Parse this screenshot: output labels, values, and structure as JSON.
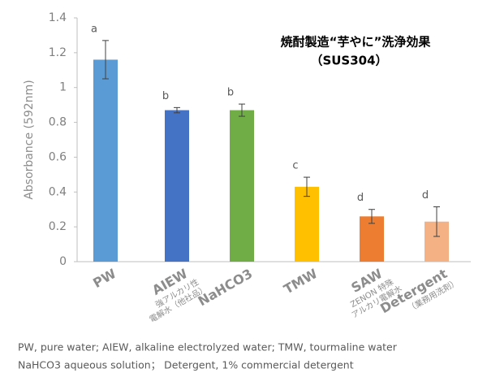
{
  "chart_data": {
    "type": "bar",
    "title": "焼酎製造“芋やに”洗浄効果",
    "subtitle": "（SUS304）",
    "y_label": "Absorbance (592nm)",
    "categories": [
      "PW",
      "AIEW",
      "NaHCO3",
      "TMW",
      "SAW",
      "Detergent"
    ],
    "category_notes": [
      null,
      [
        "強アルカリ性",
        "電解水（他社品）"
      ],
      null,
      null,
      [
        "ZENON 特殊",
        "アルカリ電解水"
      ],
      [
        "（業務用洗剤）"
      ]
    ],
    "values": [
      1.16,
      0.87,
      0.87,
      0.43,
      0.26,
      0.23
    ],
    "errors": [
      0.11,
      0.015,
      0.035,
      0.055,
      0.04,
      0.085
    ],
    "letters": [
      "a",
      "b",
      "b",
      "c",
      "d",
      "d"
    ],
    "colors": [
      "#5b9bd5",
      "#4472c4",
      "#70ad47",
      "#ffc000",
      "#ed7d31",
      "#f4b183"
    ],
    "ylim": [
      0,
      1.4
    ],
    "yticks": [
      0,
      0.2,
      0.4,
      0.6,
      0.8,
      1,
      1.2,
      1.4
    ],
    "grid": false
  },
  "footnotes": [
    "PW, pure water; AIEW, alkaline electrolyzed water; TMW, tourmaline water",
    "NaHCO3 aqueous solution； Detergent, 1% commercial detergent"
  ]
}
